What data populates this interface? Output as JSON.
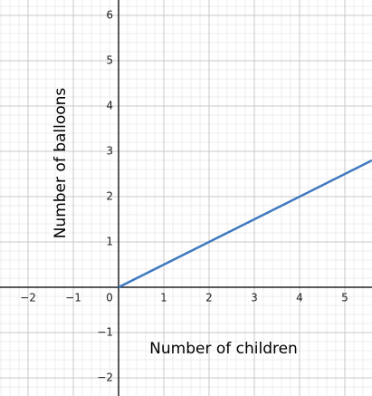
{
  "chart_data": {
    "type": "line",
    "x_label": "Number of children",
    "y_label": "Number of balloons",
    "x": [
      0,
      5.6
    ],
    "values": [
      0,
      2.8
    ],
    "color": "#3f78c0",
    "xlim": [
      -2.62,
      5.6
    ],
    "ylim": [
      -2.4,
      6.34
    ],
    "xticks": [
      {
        "value": -2,
        "label": "−2"
      },
      {
        "value": -1,
        "label": "−1"
      },
      0,
      1,
      2,
      3,
      4,
      5
    ],
    "yticks": [
      {
        "value": -2,
        "label": "−2"
      },
      {
        "value": -1,
        "label": "−1"
      },
      1,
      2,
      3,
      4,
      5,
      6
    ],
    "grid": true,
    "minor_grid": true
  }
}
